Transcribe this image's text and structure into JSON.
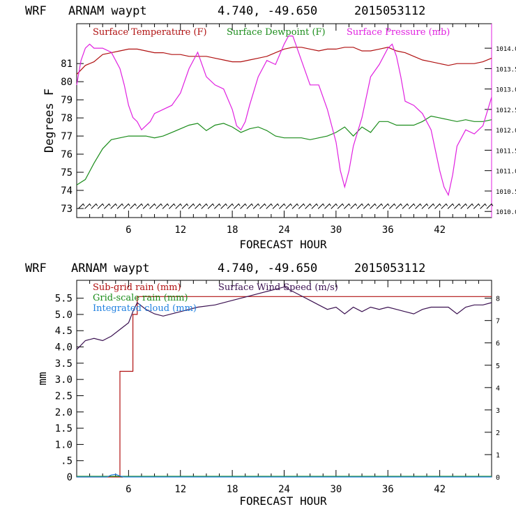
{
  "chart_data": [
    {
      "type": "line",
      "header": {
        "model": "WRF",
        "location": "ARNAM waypt",
        "coords": "4.740, -49.650",
        "run": "2015053112"
      },
      "xlabel": "FORECAST HOUR",
      "ylabel": "Degrees F",
      "xlim": [
        0,
        48
      ],
      "ylim": [
        72.5,
        83.2
      ],
      "y2lim": [
        1009.85,
        1014.6
      ],
      "x_ticks": [
        "6",
        "12",
        "18",
        "24",
        "30",
        "36",
        "42"
      ],
      "x_tick_values": [
        6,
        12,
        18,
        24,
        30,
        36,
        42
      ],
      "y_ticks": [
        "73",
        "74",
        "75",
        "76",
        "77",
        "78",
        "79",
        "80",
        "81"
      ],
      "y_tick_values": [
        73,
        74,
        75,
        76,
        77,
        78,
        79,
        80,
        81
      ],
      "y2_ticks": [
        "1010.0",
        "1010.5",
        "1011.0",
        "1011.5",
        "1012.0",
        "1012.5",
        "1013.0",
        "1013.5",
        "1014.0"
      ],
      "y2_tick_values": [
        1010.0,
        1010.5,
        1011.0,
        1011.5,
        1012.0,
        1012.5,
        1013.0,
        1013.5,
        1014.0
      ],
      "legend": [
        {
          "label": "Surface Temperature (F)",
          "color": "#b01010"
        },
        {
          "label": "Surface Dewpoint (F)",
          "color": "#1a8c1a"
        },
        {
          "label": "Surface Pressure (mb)",
          "color": "#e020e0"
        }
      ],
      "series": [
        {
          "name": "Surface Temperature (F)",
          "color": "#b01010",
          "axis": "left",
          "x": [
            0,
            1,
            2,
            3,
            4,
            5,
            6,
            7,
            8,
            9,
            10,
            11,
            12,
            13,
            14,
            15,
            16,
            17,
            18,
            19,
            20,
            21,
            22,
            23,
            24,
            25,
            26,
            27,
            28,
            29,
            30,
            31,
            32,
            33,
            34,
            35,
            36,
            37,
            38,
            39,
            40,
            41,
            42,
            43,
            44,
            45,
            46,
            47,
            48
          ],
          "values": [
            80.4,
            80.9,
            81.1,
            81.5,
            81.6,
            81.7,
            81.8,
            81.8,
            81.7,
            81.6,
            81.6,
            81.5,
            81.5,
            81.4,
            81.4,
            81.4,
            81.3,
            81.2,
            81.1,
            81.1,
            81.2,
            81.3,
            81.4,
            81.6,
            81.8,
            81.9,
            81.9,
            81.8,
            81.7,
            81.8,
            81.8,
            81.9,
            81.9,
            81.7,
            81.7,
            81.8,
            81.9,
            81.7,
            81.6,
            81.4,
            81.2,
            81.1,
            81.0,
            80.9,
            81.0,
            81.0,
            81.0,
            81.1,
            81.3
          ]
        },
        {
          "name": "Surface Dewpoint (F)",
          "color": "#1a8c1a",
          "axis": "left",
          "x": [
            0,
            1,
            2,
            3,
            4,
            5,
            6,
            7,
            8,
            9,
            10,
            11,
            12,
            13,
            14,
            15,
            16,
            17,
            18,
            19,
            20,
            21,
            22,
            23,
            24,
            25,
            26,
            27,
            28,
            29,
            30,
            31,
            32,
            33,
            34,
            35,
            36,
            37,
            38,
            39,
            40,
            41,
            42,
            43,
            44,
            45,
            46,
            47,
            48
          ],
          "values": [
            74.3,
            74.6,
            75.5,
            76.3,
            76.8,
            76.9,
            77.0,
            77.0,
            77.0,
            76.9,
            77.0,
            77.2,
            77.4,
            77.6,
            77.7,
            77.3,
            77.6,
            77.7,
            77.5,
            77.2,
            77.4,
            77.5,
            77.3,
            77.0,
            76.9,
            76.9,
            76.9,
            76.8,
            76.9,
            77.0,
            77.2,
            77.5,
            77.0,
            77.5,
            77.2,
            77.8,
            77.8,
            77.6,
            77.6,
            77.6,
            77.8,
            78.1,
            78.0,
            77.9,
            77.8,
            77.9,
            77.8,
            77.8,
            77.9
          ]
        },
        {
          "name": "Surface Pressure (mb)",
          "color": "#e020e0",
          "axis": "right",
          "x": [
            0,
            0.5,
            1,
            1.5,
            2,
            3,
            4,
            5,
            5.5,
            6,
            6.5,
            7,
            7.5,
            8,
            8.5,
            9,
            10,
            11,
            12,
            13,
            14,
            15,
            16,
            17,
            18,
            18.5,
            19,
            19.5,
            20,
            21,
            22,
            23,
            24,
            24.5,
            25,
            25.5,
            26,
            27,
            28,
            29,
            30,
            30.5,
            31,
            31.5,
            32,
            33,
            34,
            35,
            36,
            36.5,
            37,
            37.5,
            38,
            39,
            40,
            41,
            42,
            42.5,
            43,
            43.5,
            44,
            45,
            46,
            47,
            48
          ],
          "values": [
            1013.1,
            1013.7,
            1014.0,
            1014.1,
            1014.0,
            1014.0,
            1013.9,
            1013.5,
            1013.1,
            1012.6,
            1012.3,
            1012.2,
            1012.0,
            1012.1,
            1012.2,
            1012.4,
            1012.5,
            1012.6,
            1012.9,
            1013.5,
            1013.9,
            1013.3,
            1013.1,
            1013.0,
            1012.5,
            1012.1,
            1012.0,
            1012.2,
            1012.6,
            1013.3,
            1013.7,
            1013.6,
            1014.1,
            1014.3,
            1014.3,
            1014.0,
            1013.7,
            1013.1,
            1013.1,
            1012.5,
            1011.7,
            1011.0,
            1010.6,
            1011.0,
            1011.6,
            1012.3,
            1013.3,
            1013.6,
            1014.0,
            1014.1,
            1013.8,
            1013.3,
            1012.7,
            1012.6,
            1012.4,
            1012.0,
            1011.0,
            1010.6,
            1010.4,
            1010.9,
            1011.6,
            1012.0,
            1011.9,
            1012.1,
            1012.8
          ]
        }
      ]
    },
    {
      "type": "line",
      "header": {
        "model": "WRF",
        "location": "ARNAM waypt",
        "coords": "4.740, -49.650",
        "run": "2015053112"
      },
      "xlabel": "FORECAST HOUR",
      "ylabel": "mm",
      "xlim": [
        0,
        48
      ],
      "ylim": [
        0,
        6.05
      ],
      "y2lim": [
        0,
        8.8
      ],
      "x_ticks": [
        "6",
        "12",
        "18",
        "24",
        "30",
        "36",
        "42"
      ],
      "x_tick_values": [
        6,
        12,
        18,
        24,
        30,
        36,
        42
      ],
      "y_ticks": [
        "0",
        ".5",
        "1.0",
        "1.5",
        "2.0",
        "2.5",
        "3.0",
        "3.5",
        "4.0",
        "4.5",
        "5.0",
        "5.5"
      ],
      "y_tick_values": [
        0,
        0.5,
        1.0,
        1.5,
        2.0,
        2.5,
        3.0,
        3.5,
        4.0,
        4.5,
        5.0,
        5.5
      ],
      "y2_ticks": [
        "0",
        "1",
        "2",
        "3",
        "4",
        "5",
        "6",
        "7",
        "8"
      ],
      "y2_tick_values": [
        0,
        1,
        2,
        3,
        4,
        5,
        6,
        7,
        8
      ],
      "legend": [
        {
          "label": "Sub-grid rain (mm)",
          "color": "#b01010"
        },
        {
          "label": "Grid-scale rain (mm)",
          "color": "#1a8c1a"
        },
        {
          "label": "Integrated cloud (mm)",
          "color": "#2080e0"
        },
        {
          "label": "Surface Wind Speed (m/s)",
          "color": "#3a1050"
        }
      ],
      "series": [
        {
          "name": "Sub-grid rain (mm)",
          "color": "#b01010",
          "axis": "left",
          "x": [
            0,
            5,
            5,
            6.5,
            6.5,
            7,
            7,
            48
          ],
          "values": [
            0,
            0,
            3.25,
            3.25,
            5.0,
            5.0,
            5.55,
            5.55
          ]
        },
        {
          "name": "Grid-scale rain (mm)",
          "color": "#1a8c1a",
          "axis": "left",
          "x": [
            0,
            48
          ],
          "values": [
            0.02,
            0.02
          ]
        },
        {
          "name": "Integrated cloud (mm)",
          "color": "#2080e0",
          "axis": "left",
          "x": [
            0,
            3.5,
            4,
            4.5,
            5,
            5.5,
            48
          ],
          "values": [
            0,
            0,
            0.06,
            0.08,
            0.03,
            0,
            0
          ]
        },
        {
          "name": "Surface Wind Speed (m/s)",
          "color": "#3a1050",
          "axis": "right",
          "x": [
            0,
            0.5,
            1,
            2,
            3,
            4,
            5,
            6,
            6.5,
            7,
            8,
            9,
            10,
            11,
            12,
            14,
            16,
            18,
            20,
            22,
            23,
            24,
            25,
            26,
            27,
            28,
            29,
            30,
            31,
            32,
            33,
            34,
            35,
            36,
            37,
            38,
            39,
            40,
            41,
            42,
            43,
            44,
            45,
            46,
            47,
            48
          ],
          "values": [
            5.7,
            5.9,
            6.1,
            6.2,
            6.1,
            6.3,
            6.6,
            6.9,
            7.4,
            7.8,
            7.5,
            7.3,
            7.2,
            7.3,
            7.4,
            7.6,
            7.7,
            7.9,
            8.1,
            8.3,
            8.4,
            8.5,
            8.3,
            8.1,
            7.9,
            7.7,
            7.5,
            7.6,
            7.3,
            7.6,
            7.4,
            7.6,
            7.5,
            7.6,
            7.5,
            7.4,
            7.3,
            7.5,
            7.6,
            7.6,
            7.6,
            7.3,
            7.6,
            7.7,
            7.7,
            7.8
          ]
        }
      ]
    }
  ]
}
